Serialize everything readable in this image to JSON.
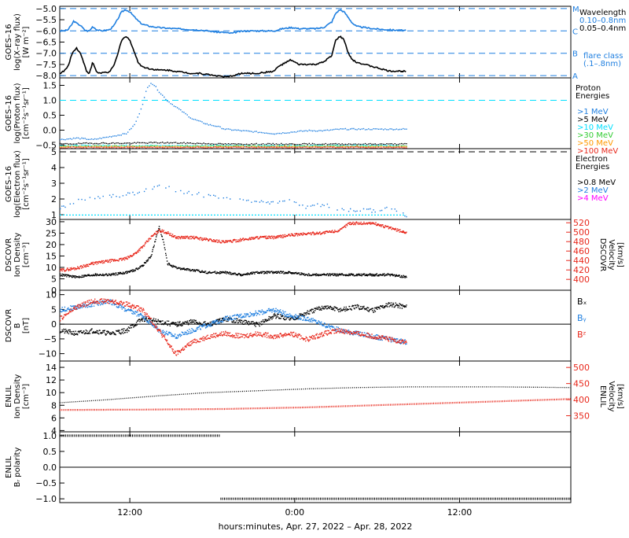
{
  "xlabel": "hours:minutes, Apr. 27, 2022 – Apr. 28, 2022",
  "x_ticks": [
    "12:00",
    "0:00",
    "12:00"
  ],
  "colors": {
    "black": "#000000",
    "blue": "#1f7fe0",
    "cyan": "#00e0ff",
    "green": "#33cc33",
    "orange": "#ff9900",
    "red": "#e8281c",
    "magenta": "#ff00ff"
  },
  "chart_data": [
    {
      "type": "line",
      "id": "xray",
      "ylabel": [
        "GOES–16",
        "log(X–ray flux)",
        "[W m⁻²]"
      ],
      "ylim": [
        -8.1,
        -4.9
      ],
      "yticks": [
        -5.0,
        -5.5,
        -6.0,
        -6.5,
        -7.0,
        -7.5,
        -8.0
      ],
      "ytick_labels": [
        "−5.0",
        "−5.5",
        "−6.0",
        "−6.5",
        "−7.0",
        "−7.5",
        "−8.0"
      ],
      "flare_levels": [
        {
          "label": "M",
          "value": -5.0
        },
        {
          "label": "C",
          "value": -6.0
        },
        {
          "label": "B",
          "value": -7.0
        },
        {
          "label": "A",
          "value": -8.0
        }
      ],
      "legend": [
        "Wavelength",
        "0.10–0.8nm",
        "0.05–0.4nm",
        "flare class",
        "(.1–.8nm)"
      ],
      "series": [
        {
          "name": "0.10–0.8nm",
          "color": "blue",
          "x": [
            0,
            0.5,
            1,
            1.5,
            1.7,
            2,
            2.5,
            3,
            3.3,
            3.6,
            4,
            4.5,
            5,
            6,
            6.5,
            7,
            7.5,
            8,
            8.5,
            9,
            9.5,
            10,
            11,
            12,
            13,
            14,
            15,
            16,
            17,
            18,
            19,
            20,
            20.5,
            21,
            21.5,
            22,
            23,
            24,
            25,
            26,
            26.5,
            27,
            27.5,
            28,
            28.5,
            29,
            30,
            31,
            32,
            33,
            33.5,
            34,
            34.5,
            35,
            35.5,
            36,
            37,
            38,
            39,
            40,
            41,
            42
          ],
          "y": [
            -6.0,
            -6.0,
            -5.95,
            -5.7,
            -5.55,
            -5.65,
            -5.75,
            -5.95,
            -6.0,
            -6.0,
            -5.8,
            -5.95,
            -6.0,
            -5.95,
            -5.8,
            -5.5,
            -5.15,
            -5.05,
            -5.15,
            -5.35,
            -5.55,
            -5.7,
            -5.8,
            -5.85,
            -5.88,
            -5.9,
            -5.92,
            -5.94,
            -5.96,
            -6.0,
            -6.05,
            -6.07,
            -6.1,
            -6.1,
            -6.05,
            -6.02,
            -6.0,
            -6.0,
            -6.0,
            -6.0,
            -5.95,
            -5.9,
            -5.88,
            -5.85,
            -5.86,
            -5.9,
            -5.9,
            -5.9,
            -5.85,
            -5.6,
            -5.2,
            -5.05,
            -5.15,
            -5.4,
            -5.65,
            -5.8,
            -5.85,
            -5.9,
            -5.93,
            -5.95,
            -5.97,
            -5.98
          ]
        },
        {
          "name": "0.05–0.4nm",
          "color": "black",
          "x": [
            0,
            0.5,
            1,
            1.5,
            2,
            2.5,
            3,
            3.3,
            3.6,
            4,
            4.5,
            5,
            5.5,
            6,
            6.5,
            7,
            7.5,
            8,
            8.5,
            9,
            9.5,
            10,
            11,
            12,
            13,
            14,
            15,
            16,
            17,
            18,
            19,
            20,
            20.5,
            21,
            21.5,
            22,
            23,
            24,
            25,
            26,
            26.5,
            27,
            27.5,
            28,
            28.5,
            29,
            30,
            31,
            32,
            33,
            33.5,
            34,
            34.5,
            35,
            35.5,
            36,
            37,
            38,
            39,
            40,
            41,
            42
          ],
          "y": [
            -7.9,
            -7.8,
            -7.6,
            -7.0,
            -6.75,
            -7.0,
            -7.5,
            -7.85,
            -7.9,
            -7.4,
            -7.85,
            -7.9,
            -7.85,
            -7.85,
            -7.6,
            -7.1,
            -6.4,
            -6.25,
            -6.4,
            -6.9,
            -7.4,
            -7.6,
            -7.7,
            -7.75,
            -7.75,
            -7.8,
            -7.85,
            -7.9,
            -7.9,
            -7.95,
            -8.0,
            -8.05,
            -8.05,
            -8.0,
            -7.95,
            -7.9,
            -7.9,
            -7.9,
            -7.85,
            -7.8,
            -7.6,
            -7.5,
            -7.4,
            -7.3,
            -7.4,
            -7.5,
            -7.5,
            -7.5,
            -7.4,
            -7.1,
            -6.4,
            -6.25,
            -6.4,
            -7.0,
            -7.3,
            -7.4,
            -7.5,
            -7.6,
            -7.7,
            -7.8,
            -7.8,
            -7.8
          ]
        }
      ]
    },
    {
      "type": "scatter",
      "id": "proton",
      "ylabel": [
        "GOES–16",
        "log(Proton flux)",
        "[cm⁻²s⁻¹sr⁻¹]"
      ],
      "ylim": [
        -0.62,
        1.75
      ],
      "yticks": [
        1.5,
        1.0,
        0.5,
        0.0,
        -0.5
      ],
      "ytick_labels": [
        "1.5",
        "1.0",
        "0.5",
        "0.0",
        "−0.5"
      ],
      "ref_line": {
        "value": 1.0,
        "color": "cyan"
      },
      "legend_title": [
        "Proton",
        "Energies"
      ],
      "series": [
        {
          "name": ">1 MeV",
          "color": "blue",
          "x": [
            0,
            2,
            4,
            6,
            8,
            9,
            9.5,
            10,
            10.5,
            11,
            11.5,
            12,
            13,
            14,
            15,
            16,
            17,
            18,
            19,
            20,
            22,
            24,
            26,
            28,
            30,
            32,
            34,
            36,
            38,
            40,
            42
          ],
          "y": [
            -0.3,
            -0.25,
            -0.3,
            -0.2,
            -0.1,
            0.2,
            0.5,
            0.9,
            1.4,
            1.6,
            1.5,
            1.3,
            1.0,
            0.8,
            0.6,
            0.4,
            0.3,
            0.2,
            0.15,
            0.05,
            0.0,
            -0.05,
            -0.1,
            -0.05,
            0.0,
            0.0,
            0.05,
            0.05,
            0.05,
            0.05,
            0.05
          ]
        },
        {
          "name": ">5 MeV",
          "color": "black",
          "x": [
            0,
            4,
            8,
            12,
            16,
            20,
            24,
            28,
            32,
            36,
            40,
            42
          ],
          "y": [
            -0.45,
            -0.42,
            -0.42,
            -0.4,
            -0.42,
            -0.45,
            -0.45,
            -0.45,
            -0.45,
            -0.45,
            -0.45,
            -0.45
          ]
        },
        {
          "name": ">10 MeV",
          "color": "cyan",
          "x": [
            0,
            42
          ],
          "y": [
            -0.5,
            -0.5
          ]
        },
        {
          "name": ">30 MeV",
          "color": "green",
          "x": [
            0,
            42
          ],
          "y": [
            -0.52,
            -0.52
          ]
        },
        {
          "name": ">50 MeV",
          "color": "orange",
          "x": [
            0,
            42
          ],
          "y": [
            -0.54,
            -0.54
          ]
        },
        {
          "name": ">100 MeV",
          "color": "red",
          "x": [
            0,
            42
          ],
          "y": [
            -0.56,
            -0.56
          ]
        }
      ]
    },
    {
      "type": "scatter",
      "id": "electron",
      "ylabel": [
        "GOES–16",
        "log(Electron flux)",
        "[cm⁻²s⁻¹sr⁻¹]"
      ],
      "ylim": [
        0.7,
        5.2
      ],
      "yticks": [
        5,
        4,
        3,
        2,
        1
      ],
      "ytick_labels": [
        "5",
        "4",
        "3",
        "2",
        "1"
      ],
      "ref_line": {
        "value": 5.0,
        "color": "black"
      },
      "legend_title": [
        "Electron",
        "Energies"
      ],
      "series": [
        {
          "name": ">0.8 MeV",
          "color": "black",
          "x": [],
          "y": []
        },
        {
          "name": ">2 MeV",
          "color": "blue",
          "x": [
            0,
            2,
            4,
            6,
            8,
            10,
            11,
            12,
            13,
            14,
            16,
            18,
            20,
            22,
            24,
            26,
            28,
            30,
            32,
            34,
            36,
            38,
            40,
            42
          ],
          "y": [
            1.5,
            1.9,
            2.1,
            2.2,
            2.3,
            2.5,
            2.7,
            2.8,
            2.75,
            2.6,
            2.4,
            2.2,
            2.1,
            2.0,
            1.9,
            1.8,
            1.9,
            1.5,
            1.7,
            1.4,
            1.3,
            1.3,
            1.5,
            1.0
          ]
        },
        {
          "name": ">4 MeV",
          "color": "magenta",
          "x": [],
          "y": []
        }
      ],
      "baseline": {
        "color": "cyan",
        "value": 0.98
      }
    },
    {
      "type": "scatter",
      "id": "dscovr_plasma",
      "ylabel": [
        "DSCOVR",
        "Ion Density",
        "[cm⁻³]"
      ],
      "ylabel_right": [
        "DSCOVR",
        "Velocity",
        "[km/s]"
      ],
      "ylim": [
        0,
        31
      ],
      "yticks": [
        30,
        25,
        20,
        15,
        10,
        5,
        0
      ],
      "ytick_labels": [
        "30",
        "25",
        "20",
        "15",
        "10",
        "5",
        "0"
      ],
      "ylim_right": [
        377,
        527
      ],
      "yticks_right": [
        520,
        500,
        480,
        460,
        440,
        420,
        400
      ],
      "ytick_labels_right": [
        "520",
        "500",
        "480",
        "460",
        "440",
        "420",
        "400"
      ],
      "series": [
        {
          "name": "Density",
          "color": "black",
          "x": [
            0,
            2,
            4,
            6,
            8,
            9,
            10,
            11,
            12,
            12.5,
            13,
            14,
            16,
            18,
            20,
            22,
            24,
            26,
            28,
            30,
            32,
            34,
            36,
            38,
            40,
            42
          ],
          "y": [
            7,
            6,
            7,
            7,
            8,
            9,
            11,
            15,
            28,
            22,
            12,
            10,
            9,
            8,
            8,
            7,
            8,
            8,
            8,
            7,
            7,
            7,
            7,
            7,
            7,
            6
          ]
        },
        {
          "name": "Velocity",
          "color": "red",
          "x": [
            0,
            2,
            4,
            6,
            8,
            9,
            10,
            11,
            12,
            13,
            14,
            16,
            18,
            20,
            22,
            24,
            26,
            28,
            30,
            32,
            34,
            35,
            36,
            38,
            40,
            42
          ],
          "y": [
            420,
            425,
            435,
            440,
            445,
            455,
            470,
            490,
            505,
            500,
            490,
            490,
            485,
            480,
            485,
            490,
            490,
            495,
            498,
            500,
            505,
            520,
            520,
            520,
            510,
            500
          ]
        }
      ]
    },
    {
      "type": "scatter",
      "id": "dscovr_mag",
      "ylabel": [
        "DSCOVR",
        "B",
        "[nT]"
      ],
      "ylim": [
        -12.5,
        11.5
      ],
      "yticks": [
        10,
        5,
        0,
        -5,
        -10
      ],
      "ytick_labels": [
        "10",
        "5",
        "0",
        "−5",
        "−10"
      ],
      "legend": [
        "Bₓ",
        "Bᵧ",
        "Bᶻ"
      ],
      "series": [
        {
          "name": "Bₓ",
          "color": "black",
          "x": [
            0,
            2,
            4,
            6,
            8,
            10,
            12,
            14,
            16,
            18,
            20,
            22,
            24,
            26,
            28,
            30,
            32,
            34,
            36,
            38,
            40,
            42
          ],
          "y": [
            -2,
            -3,
            -2,
            -3,
            -2,
            2,
            1,
            0,
            1,
            0,
            2,
            1,
            0,
            3,
            2,
            4,
            6,
            5,
            6,
            5,
            7,
            6
          ]
        },
        {
          "name": "Bᵧ",
          "color": "blue",
          "x": [
            0,
            2,
            4,
            6,
            8,
            10,
            12,
            14,
            16,
            18,
            20,
            22,
            24,
            26,
            28,
            30,
            32,
            34,
            36,
            38,
            40,
            42
          ],
          "y": [
            5,
            6,
            7,
            8,
            5,
            3,
            -2,
            -4,
            -2,
            0,
            2,
            3,
            4,
            5,
            3,
            2,
            0,
            -2,
            -3,
            -4,
            -5,
            -6
          ]
        },
        {
          "name": "Bᶻ",
          "color": "red",
          "x": [
            0,
            2,
            4,
            6,
            8,
            10,
            12,
            14,
            16,
            18,
            20,
            22,
            24,
            26,
            28,
            30,
            32,
            34,
            36,
            38,
            40,
            42
          ],
          "y": [
            2,
            6,
            8,
            8,
            7,
            5,
            -2,
            -10,
            -6,
            -4,
            -3,
            -4,
            -3,
            -4,
            -3,
            -5,
            -3,
            -2,
            -3,
            -4,
            -5,
            -6
          ]
        }
      ]
    },
    {
      "type": "line",
      "id": "enlil_plasma",
      "ylabel": [
        "ENLIL",
        "Ion Density",
        "[cm⁻³]"
      ],
      "ylabel_right": [
        "ENLIL",
        "Velocity",
        "[km/s]"
      ],
      "ylim": [
        3.8,
        15.0
      ],
      "yticks": [
        14,
        12,
        10,
        8,
        6,
        4
      ],
      "ytick_labels": [
        "14",
        "12",
        "10",
        "8",
        "6",
        "4"
      ],
      "ylim_right": [
        300,
        520
      ],
      "yticks_right": [
        500,
        450,
        400,
        350
      ],
      "ytick_labels_right": [
        "500",
        "450",
        "400",
        "350"
      ],
      "series": [
        {
          "name": "Density",
          "color": "black",
          "x": [
            0,
            6,
            12,
            18,
            24,
            30,
            36,
            42,
            48,
            54,
            62
          ],
          "y": [
            8.4,
            8.9,
            9.5,
            10.0,
            10.3,
            10.6,
            10.8,
            10.9,
            10.9,
            10.9,
            10.8
          ]
        },
        {
          "name": "Velocity",
          "color": "red",
          "x": [
            0,
            10,
            20,
            30,
            40,
            50,
            62
          ],
          "y": [
            368,
            369,
            371,
            376,
            384,
            392,
            402
          ]
        }
      ]
    },
    {
      "type": "scatter",
      "id": "enlil_polarity",
      "ylabel": [
        "ENLIL",
        "Bᵣ polarity"
      ],
      "ylim": [
        -1.12,
        1.12
      ],
      "yticks": [
        1.0,
        0.5,
        0.0,
        -0.5,
        -1.0
      ],
      "ytick_labels": [
        "1.0",
        "0.5",
        "0.0",
        "−0.5",
        "−1.0"
      ],
      "series": [
        {
          "name": "Polarity",
          "color": "black",
          "x": [
            0,
            19.5,
            19.5,
            62
          ],
          "y": [
            1,
            1,
            -1,
            -1
          ]
        }
      ]
    }
  ]
}
